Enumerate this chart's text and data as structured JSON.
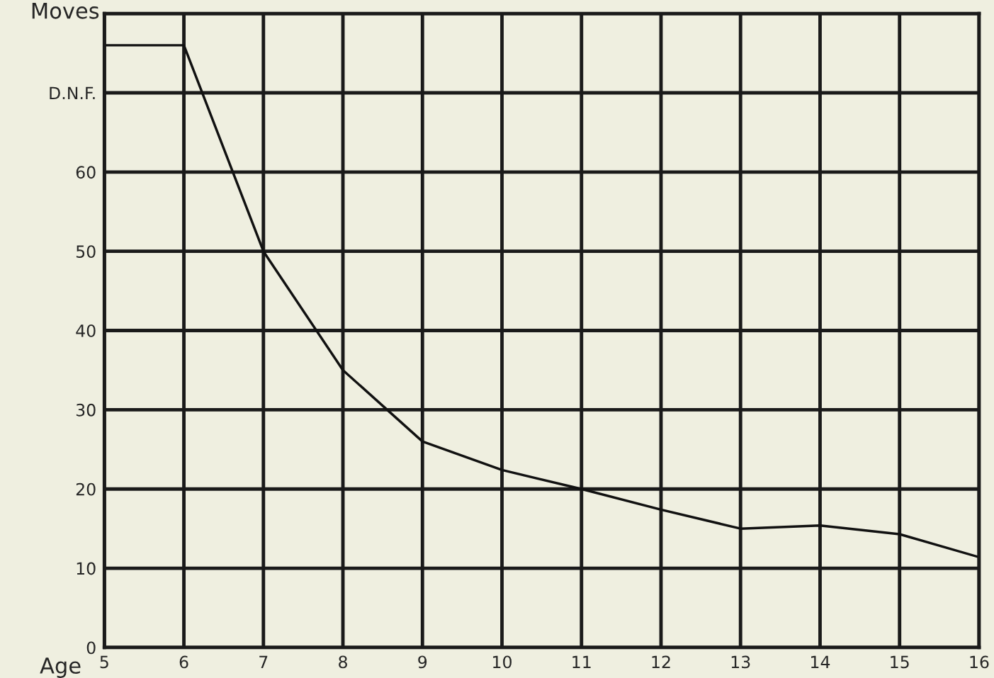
{
  "chart_data": {
    "type": "line",
    "xlabel": "Age",
    "ylabel": "Moves",
    "x": [
      5,
      6,
      7,
      8,
      9,
      10,
      11,
      12,
      13,
      14,
      15,
      16
    ],
    "series": [
      {
        "color": "#111111",
        "values": [
          76,
          76,
          50,
          35,
          26,
          22.4,
          20,
          17.4,
          15,
          15.4,
          14.3,
          11.4
        ]
      }
    ],
    "xlim": [
      5,
      16
    ],
    "xticks": [
      5,
      6,
      7,
      8,
      9,
      10,
      11,
      12,
      13,
      14,
      15,
      16
    ],
    "ylim": [
      0,
      80
    ],
    "yticks": [
      0,
      10,
      20,
      30,
      40,
      50,
      60,
      {
        "value": 70,
        "label": "D.N.F."
      },
      {
        "value": 80,
        "label": null
      }
    ],
    "grid": true,
    "marker": "none",
    "line_style": "solid"
  }
}
